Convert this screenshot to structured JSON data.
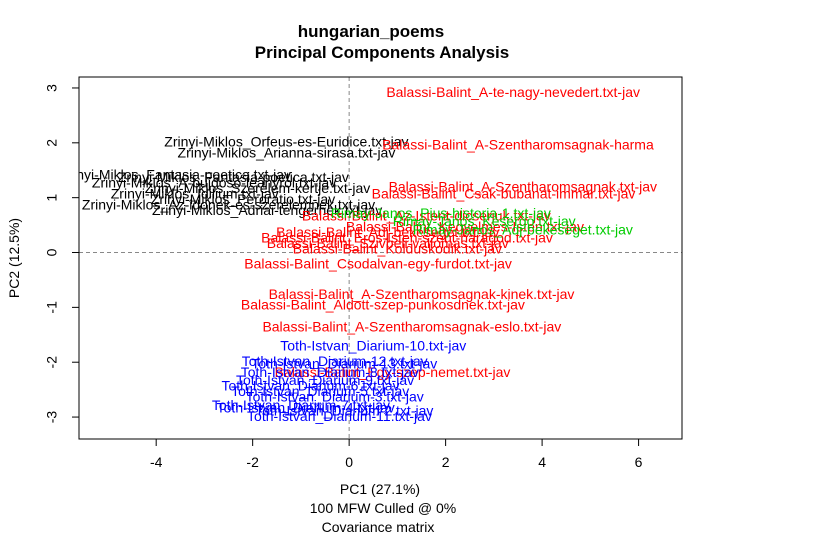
{
  "chart_data": {
    "type": "scatter",
    "title": "hungarian_poems",
    "subtitle": "Principal Components Analysis",
    "xlabel": "PC1 (27.1%)",
    "ylabel": "PC2 (12.5%)",
    "caption_line1": "100 MFW  Culled @ 0%",
    "caption_line2": "Covariance matrix",
    "xlim": [
      -5.6,
      6.9
    ],
    "ylim": [
      -3.4,
      3.2
    ],
    "x_ticks": [
      -4,
      -2,
      0,
      2,
      4,
      6
    ],
    "x_tick_labels": [
      "-4",
      "-2",
      "0",
      "2",
      "4",
      "6"
    ],
    "y_ticks": [
      -3,
      -2,
      -1,
      0,
      1,
      2,
      3
    ],
    "y_tick_labels": [
      "-3",
      "-2",
      "-1",
      "0",
      "1",
      "2",
      "3"
    ],
    "reference_lines": {
      "x": 0,
      "y": 0,
      "style": "dashed",
      "color": "#888888"
    },
    "series": [
      {
        "name": "Zrinyi-Miklos",
        "color": "#000000",
        "points": [
          {
            "label": "Zrinyi-Miklos_Orfeus-es-Euridice.txt-jav",
            "x": -1.3,
            "y": 2.0
          },
          {
            "label": "Zrinyi-Miklos_Arianna-sirasa.txt-jav",
            "x": -1.3,
            "y": 1.8
          },
          {
            "label": "Zrinyi-Miklos_Fantasia-poetica.txt-jav",
            "x": -3.6,
            "y": 1.4
          },
          {
            "label": "Zrinyi-Miklos_Fantasia-poetica.txt-jav",
            "x": -2.4,
            "y": 1.35
          },
          {
            "label": "Zrinyi-Miklos_A-bujdoso-leanyrol.txt-jav",
            "x": -2.8,
            "y": 1.25
          },
          {
            "label": "Zrinyi-Miklos_Szerelem-kertje.txt-jav",
            "x": -1.9,
            "y": 1.15
          },
          {
            "label": "Zrinyi-Miklos_Idilium.txt-jav",
            "x": -3.2,
            "y": 1.05
          },
          {
            "label": "Zrinyi-Miklos_Peroratio.txt-jav",
            "x": -2.2,
            "y": 0.95
          },
          {
            "label": "Zrinyi-Miklos_Az-idonek-es-szerelemnek.txt-jav",
            "x": -2.5,
            "y": 0.85
          },
          {
            "label": "Zrinyi-Miklos_Adriai-tengernek.txt-jav",
            "x": -1.7,
            "y": 0.75
          }
        ]
      },
      {
        "name": "Balassi-Balint",
        "color": "#ff0000",
        "points": [
          {
            "label": "Balassi-Balint_A-te-nagy-nevedert.txt-jav",
            "x": 3.4,
            "y": 2.9
          },
          {
            "label": "Balassi-Balint_A-Szentharomsagnak-harma",
            "x": 3.5,
            "y": 1.95
          },
          {
            "label": "Balassi-Balint_A-Szentharomsagnak.txt-jav",
            "x": 3.6,
            "y": 1.18
          },
          {
            "label": "Balassi-Balint_Csak-bubanat-immar.txt-jav",
            "x": 3.2,
            "y": 1.05
          },
          {
            "label": "Balassi-Balint_Az-Istent-dicserjuk.txt-jav",
            "x": 1.6,
            "y": 0.65
          },
          {
            "label": "Balassi-Balint_Kegyelmes-Isten.txt-jav",
            "x": 2.4,
            "y": 0.45
          },
          {
            "label": "Balassi-Balint_Adj-bekeseget.txt-jav",
            "x": 0.8,
            "y": 0.35
          },
          {
            "label": "Balassi-Balint_Eros-Isten-szent-haragod.txt-jav",
            "x": 1.2,
            "y": 0.25
          },
          {
            "label": "Balassi-Balint_Szivbeli-vallomas.txt-jav",
            "x": 0.8,
            "y": 0.15
          },
          {
            "label": "Balassi-Balint_Kolduskodik.txt-jav",
            "x": 1.0,
            "y": 0.05
          },
          {
            "label": "Balassi-Balint_Csodalvan-egy-furdot.txt-jav",
            "x": 0.6,
            "y": -0.22
          },
          {
            "label": "Balassi-Balint_A-Szentharomsagnak-kinek.txt-jav",
            "x": 1.5,
            "y": -0.78
          },
          {
            "label": "Balassi-Balint_Aldott-szep-punkosdnek.txt-jav",
            "x": 0.7,
            "y": -0.97
          },
          {
            "label": "Balassi-Balint_A-Szentharomsagnak-eslo.txt-jav",
            "x": 1.3,
            "y": -1.37
          },
          {
            "label": "Balassi-Balint_Egy-szep-nemet.txt-jav",
            "x": 0.9,
            "y": -2.2
          }
        ]
      },
      {
        "name": "Toth-Istvan",
        "color": "#0000ff",
        "points": [
          {
            "label": "Toth-Istvan_Diarium-10.txt-jav",
            "x": 0.5,
            "y": -1.72
          },
          {
            "label": "Toth-Istvan_Diarium-12.txt-jav",
            "x": -0.3,
            "y": -2.0
          },
          {
            "label": "Toth-Istvan_Diarium-13.txt-jav",
            "x": -0.1,
            "y": -2.05
          },
          {
            "label": "Toth-Istvan_Diarium-8.txt-jav",
            "x": -0.4,
            "y": -2.2
          },
          {
            "label": "Toth-Istvan_Diarium-9.txt-jav",
            "x": -0.5,
            "y": -2.35
          },
          {
            "label": "Toth-Istvan_Diarium-6.txt-jav",
            "x": -0.8,
            "y": -2.45
          },
          {
            "label": "Toth-Istvan_Diarium-5.txt-jav",
            "x": -0.6,
            "y": -2.55
          },
          {
            "label": "Toth-Istvan_Diarium-3.txt-jav",
            "x": -0.3,
            "y": -2.65
          },
          {
            "label": "Toth-Istvan_Diarium-7.txt-jav",
            "x": -1.0,
            "y": -2.8
          },
          {
            "label": "Toth-Istvan_Diarium-4.txt-jav",
            "x": -0.9,
            "y": -2.85
          },
          {
            "label": "Toth-Istvan_Diarium-2.txt-jav",
            "x": -0.1,
            "y": -2.9
          },
          {
            "label": "Toth-Istvan_Diarium-11.txt-jav",
            "x": -0.2,
            "y": -3.0
          }
        ]
      },
      {
        "name": "Rimay-Janos",
        "color": "#00cc00",
        "points": [
          {
            "label": "Rimay-Janos_Pius-historia-1.txt-jav",
            "x": 1.9,
            "y": 0.7
          },
          {
            "label": "Rimay-Janos_Kesergo.txt-jav",
            "x": 2.8,
            "y": 0.55
          },
          {
            "label": "Rimay-Janos_Adj-bekeseget.txt-jav",
            "x": 3.6,
            "y": 0.4
          }
        ]
      }
    ]
  }
}
